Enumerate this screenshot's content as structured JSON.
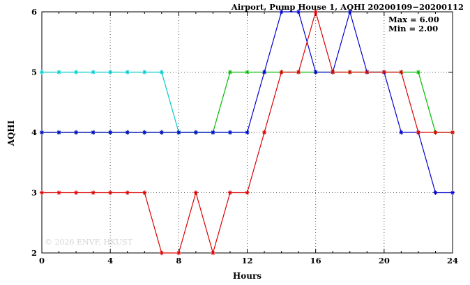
{
  "title": "Airport, Pump House 1, AQHI 20200109−20200112",
  "annotation": {
    "max": "Max = 6.00",
    "min": "Min = 2.00"
  },
  "watermark": "© 2026 ENVF, HKUST",
  "chart_data": {
    "type": "line",
    "title": "Airport, Pump House 1, AQHI 20200109−20200112",
    "xlabel": "Hours",
    "ylabel": "AQHI",
    "xlim": [
      0,
      24
    ],
    "ylim": [
      2,
      6
    ],
    "xticks": [
      0,
      4,
      8,
      12,
      16,
      20,
      24
    ],
    "yticks": [
      2,
      3,
      4,
      5,
      6
    ],
    "grid": true,
    "legend": "none",
    "marker": "asterisk",
    "annotations": [
      "Max = 6.00",
      "Min = 2.00"
    ],
    "series": [
      {
        "name": "green-line",
        "color": "#00bb00",
        "x": [
          0,
          1,
          2,
          3,
          4,
          5,
          6,
          7,
          8,
          9,
          10,
          11,
          12,
          13,
          14,
          15,
          16,
          17,
          18,
          19,
          20,
          21,
          22,
          23,
          24
        ],
        "values": [
          4,
          4,
          4,
          4,
          4,
          4,
          4,
          4,
          4,
          4,
          4,
          5,
          5,
          5,
          5,
          5,
          5,
          5,
          5,
          5,
          5,
          5,
          5,
          4,
          4
        ]
      },
      {
        "name": "cyan-line",
        "color": "#00cccc",
        "x": [
          0,
          1,
          2,
          3,
          4,
          5,
          6,
          7,
          8,
          9,
          10,
          11,
          12
        ],
        "values": [
          5,
          5,
          5,
          5,
          5,
          5,
          5,
          5,
          4,
          4,
          4,
          4,
          4
        ]
      },
      {
        "name": "blue-line",
        "color": "#0000cc",
        "x": [
          0,
          1,
          2,
          3,
          4,
          5,
          6,
          7,
          8,
          9,
          10,
          11,
          12,
          13,
          14,
          15,
          16,
          17,
          18,
          19,
          20,
          21,
          22,
          23,
          24
        ],
        "values": [
          4,
          4,
          4,
          4,
          4,
          4,
          4,
          4,
          4,
          4,
          4,
          4,
          4,
          5,
          6,
          6,
          5,
          5,
          6,
          5,
          5,
          4,
          4,
          3,
          3
        ]
      },
      {
        "name": "red-line",
        "color": "#dd0000",
        "x": [
          0,
          1,
          2,
          3,
          4,
          5,
          6,
          7,
          8,
          9,
          10,
          11,
          12,
          13,
          14,
          15,
          16,
          17,
          18,
          19,
          20,
          21,
          22,
          23,
          24
        ],
        "values": [
          3,
          3,
          3,
          3,
          3,
          3,
          3,
          2,
          2,
          3,
          2,
          3,
          3,
          4,
          5,
          5,
          6,
          5,
          5,
          5,
          5,
          5,
          4,
          4,
          4
        ]
      }
    ]
  }
}
